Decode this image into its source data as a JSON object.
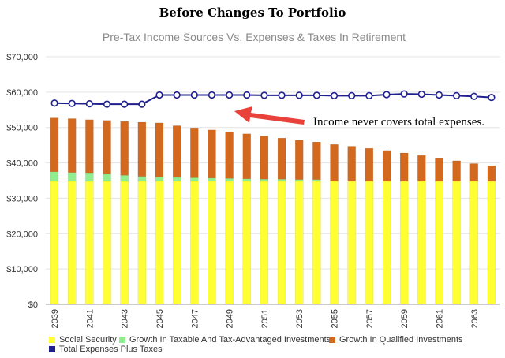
{
  "title": "Before Changes To Portfolio",
  "chart_data": {
    "type": "bar",
    "stacked": true,
    "subtitle": "Pre-Tax Income Sources Vs. Expenses & Taxes In Retirement",
    "ylim": [
      0,
      70000
    ],
    "y_ticks": [
      "$0",
      "$10,000",
      "$20,000",
      "$30,000",
      "$40,000",
      "$50,000",
      "$60,000",
      "$70,000"
    ],
    "y_tick_values": [
      0,
      10000,
      20000,
      30000,
      40000,
      50000,
      60000,
      70000
    ],
    "grid": true,
    "legend_position": "bottom",
    "categories": [
      2039,
      2040,
      2041,
      2042,
      2043,
      2044,
      2045,
      2046,
      2047,
      2048,
      2049,
      2050,
      2051,
      2052,
      2053,
      2054,
      2055,
      2056,
      2057,
      2058,
      2059,
      2060,
      2061,
      2062,
      2063,
      2064
    ],
    "x_tick_labels": [
      "2039",
      "",
      "2041",
      "",
      "2043",
      "",
      "2045",
      "",
      "2047",
      "",
      "2049",
      "",
      "2051",
      "",
      "2053",
      "",
      "2055",
      "",
      "2057",
      "",
      "2059",
      "",
      "2061",
      "",
      "2063",
      ""
    ],
    "series": [
      {
        "name": "Social Security",
        "kind": "bar",
        "color": "#ffff33",
        "values": [
          34800,
          34800,
          34800,
          34800,
          34800,
          34800,
          34800,
          34800,
          34800,
          34800,
          34800,
          34800,
          34800,
          34800,
          34800,
          34800,
          34800,
          34800,
          34800,
          34800,
          34800,
          34800,
          34800,
          34800,
          34800,
          34800
        ]
      },
      {
        "name": "Growth In Taxable And Tax-Advantaged Investments",
        "kind": "bar",
        "color": "#90ee90",
        "values": [
          2700,
          2500,
          2200,
          2000,
          1700,
          1400,
          1200,
          1100,
          1000,
          900,
          800,
          700,
          600,
          600,
          500,
          500,
          0,
          0,
          0,
          0,
          0,
          0,
          0,
          0,
          0,
          0
        ]
      },
      {
        "name": "Growth In Qualified Investments",
        "kind": "bar",
        "color": "#d2691e",
        "values": [
          15200,
          15200,
          15200,
          15200,
          15200,
          15300,
          15300,
          14600,
          14100,
          13600,
          13200,
          12700,
          12200,
          11600,
          11100,
          10600,
          10400,
          9900,
          9300,
          8700,
          8000,
          7300,
          6600,
          5800,
          5000,
          4400
        ]
      },
      {
        "name": "Total Expenses Plus Taxes",
        "kind": "line",
        "color": "#1f1f8f",
        "values": [
          56900,
          56800,
          56700,
          56600,
          56600,
          56600,
          59200,
          59200,
          59200,
          59200,
          59200,
          59200,
          59100,
          59100,
          59100,
          59100,
          59000,
          59000,
          59000,
          59300,
          59500,
          59400,
          59200,
          59000,
          58800,
          58500
        ]
      }
    ],
    "annotation": {
      "text": "Income never covers total expenses.",
      "arrow_color": "#e8423a"
    }
  }
}
